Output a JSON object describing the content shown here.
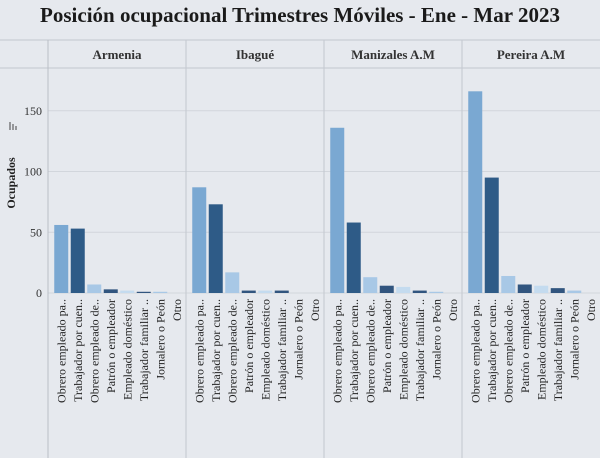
{
  "chart_data": {
    "type": "bar",
    "title": "Posición ocupacional Trimestres Móviles - Ene - Mar 2023",
    "ylabel": "Ocupados",
    "ylim": [
      0,
      180
    ],
    "yticks": [
      0,
      50,
      100,
      150
    ],
    "categories": [
      "Obrero empleado pa..",
      "Trabajador por cuen..",
      "Obrero empleado de..",
      "Patrón o empleador",
      "Empleado doméstico",
      "Trabajador familiar ..",
      "Jornalero o Peón",
      "Otro"
    ],
    "panels": [
      {
        "name": "Armenia",
        "values": [
          56,
          53,
          7,
          3,
          2,
          1,
          1,
          0
        ]
      },
      {
        "name": "Ibagué",
        "values": [
          87,
          73,
          17,
          2,
          2,
          2,
          0,
          0
        ]
      },
      {
        "name": "Manizales A.M",
        "values": [
          136,
          58,
          13,
          6,
          5,
          2,
          1,
          0
        ]
      },
      {
        "name": "Pereira A.M",
        "values": [
          166,
          95,
          14,
          7,
          6,
          4,
          2,
          0
        ]
      }
    ],
    "colors": [
      "#7aa8d2",
      "#2e5b87",
      "#a8c8e6",
      "#31557f",
      "#c4dbef",
      "#31557f",
      "#a8c8e6",
      "#7aa8d2"
    ],
    "grid": true
  }
}
